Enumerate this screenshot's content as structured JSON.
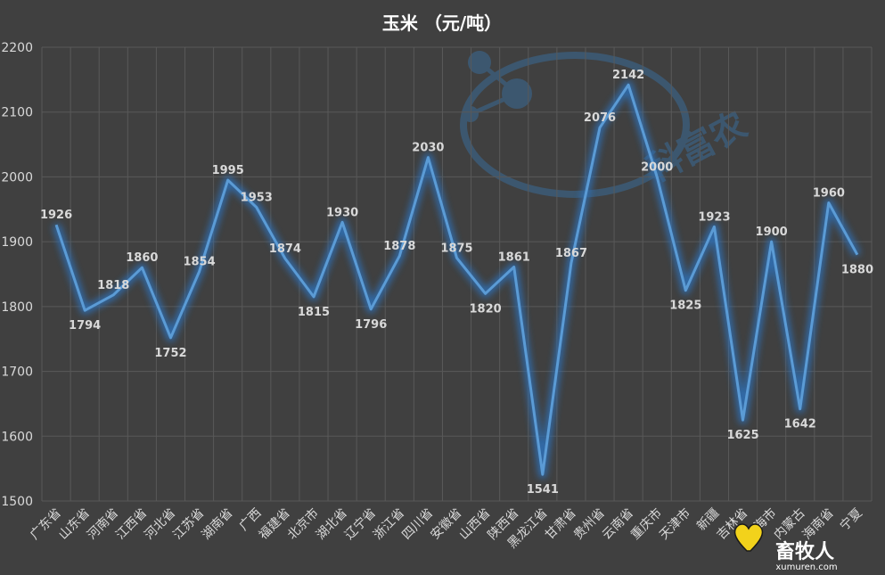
{
  "chart_data": {
    "type": "line",
    "title": "玉米 （元/吨）",
    "xlabel": "",
    "ylabel": "",
    "ylim": [
      1500,
      2200
    ],
    "yticks": [
      1500,
      1600,
      1700,
      1800,
      1900,
      2000,
      2100,
      2200
    ],
    "grid": true,
    "legend": "none",
    "colors": {
      "background": "#404040",
      "line": "#5b9bd5",
      "glow": "#2f6fb5",
      "text": "#d9d9d9"
    },
    "categories": [
      "广东省",
      "山东省",
      "河南省",
      "江西省",
      "河北省",
      "江苏省",
      "湖南省",
      "广西",
      "福建省",
      "北京市",
      "湖北省",
      "辽宁省",
      "浙江省",
      "四川省",
      "安徽省",
      "山西省",
      "陕西省",
      "黑龙江省",
      "甘肃省",
      "贵州省",
      "云南省",
      "重庆市",
      "天津市",
      "新疆",
      "吉林省",
      "上海市",
      "内蒙古",
      "海南省",
      "宁夏"
    ],
    "series": [
      {
        "values": [
          1926,
          1794,
          1818,
          1860,
          1752,
          1854,
          1995,
          1953,
          1874,
          1815,
          1930,
          1796,
          1878,
          2030,
          1875,
          1820,
          1861,
          1541,
          1867,
          2076,
          2142,
          2000,
          1825,
          1923,
          1625,
          1900,
          1642,
          1960,
          1880
        ]
      }
    ]
  },
  "watermark": {
    "text": "科富农",
    "icon": "molecule-icon"
  },
  "logo": {
    "text": "畜牧人",
    "domain": "xumuren.com",
    "icon": "heart-cow-icon"
  }
}
